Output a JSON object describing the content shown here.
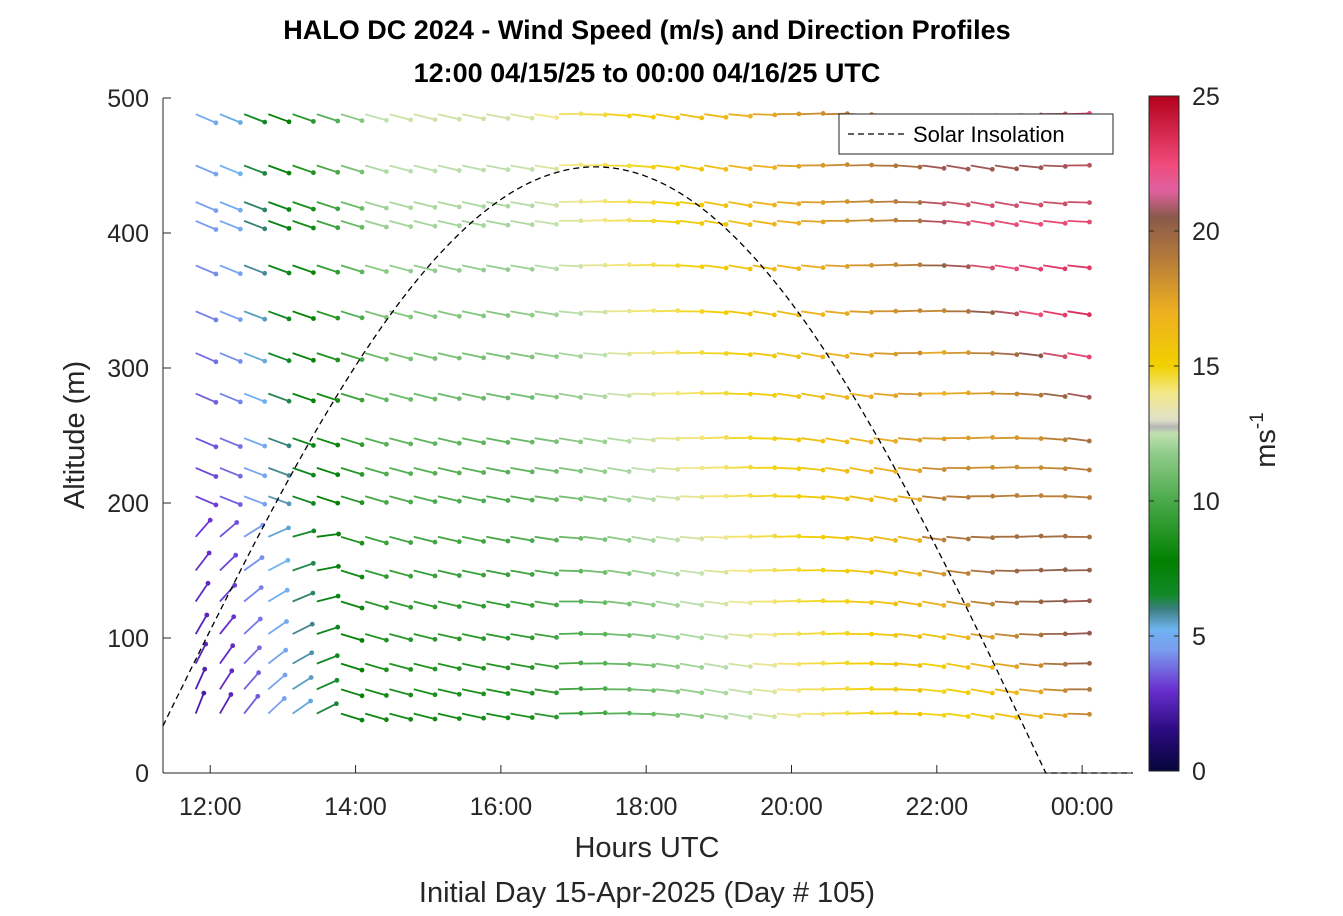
{
  "chart_data": {
    "type": "barb-profile",
    "title": "HALO DC 2024 - Wind Speed (m/s) and Direction Profiles",
    "subtitle": "12:00 04/15/25 to 00:00 04/16/25  UTC",
    "xlabel": "Hours UTC",
    "xlabel2": "Initial Day 15-Apr-2025 (Day # 105)",
    "ylabel": "Altitude (m)",
    "xlim": [
      11.35,
      24.7
    ],
    "ylim": [
      0,
      500
    ],
    "x_ticks": [
      12,
      14,
      16,
      18,
      20,
      22,
      24
    ],
    "x_tick_labels": [
      "12:00",
      "14:00",
      "16:00",
      "18:00",
      "20:00",
      "22:00",
      "00:00"
    ],
    "y_ticks": [
      0,
      100,
      200,
      300,
      400,
      500
    ],
    "y_tick_labels": [
      "0",
      "100",
      "200",
      "300",
      "400",
      "500"
    ],
    "legend": {
      "label": "Solar Insolation",
      "position": "top-right"
    },
    "colorbar": {
      "label": "ms",
      "label_superscript": "-1",
      "range": [
        0,
        25
      ],
      "ticks": [
        0,
        5,
        10,
        15,
        20,
        25
      ],
      "tick_labels": [
        "0",
        "5",
        "10",
        "15",
        "20",
        "25"
      ]
    },
    "grid": false,
    "altitudes": [
      44,
      62,
      81,
      103,
      127,
      150,
      175,
      205,
      226,
      248,
      281,
      311,
      342,
      376,
      409,
      423,
      450,
      488
    ],
    "times_start": 11.8,
    "time_step": 0.3333,
    "n_times": 38,
    "solar_insolation": {
      "start": 11.35,
      "sunrise_altitude": 35,
      "peak_time": 17.3,
      "peak_altitude": 449,
      "end_time": 23.5,
      "end_altitude": 0
    }
  }
}
